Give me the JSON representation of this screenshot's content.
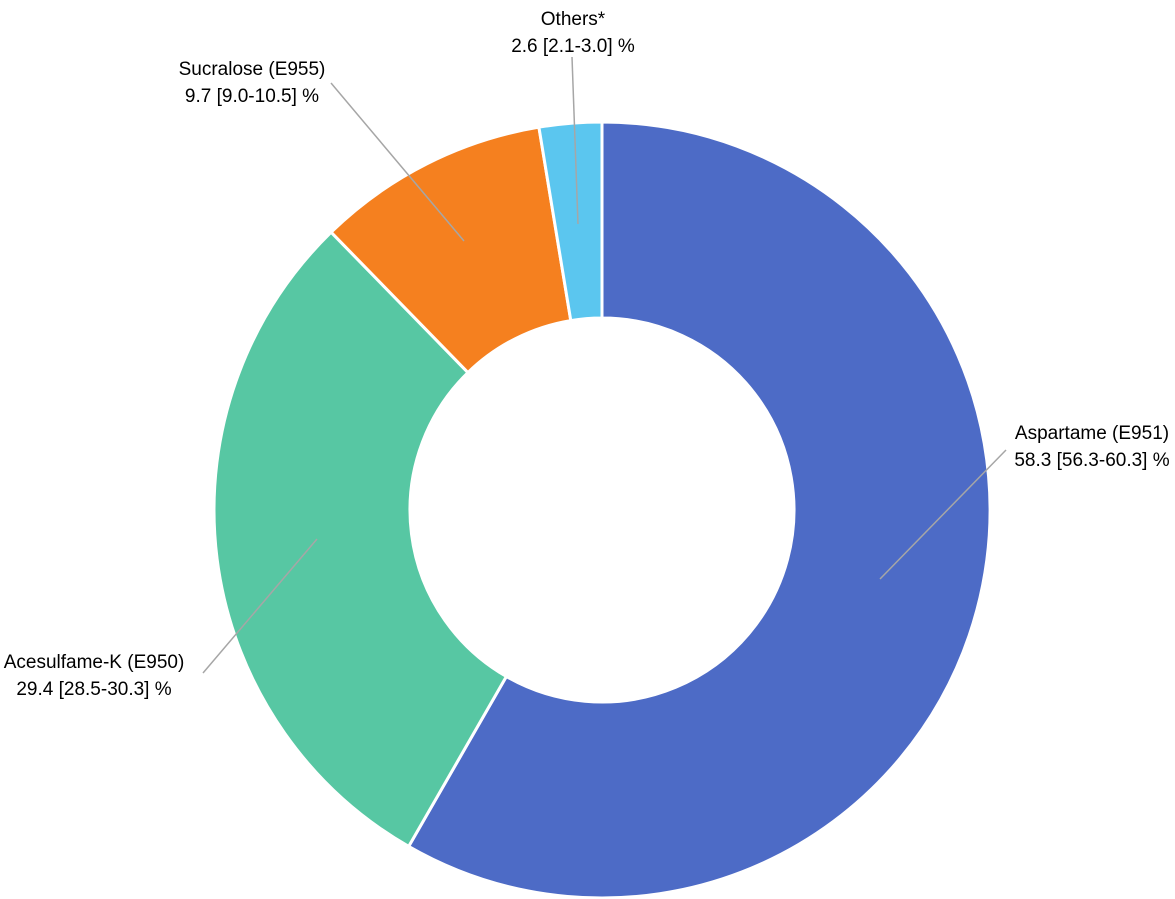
{
  "chart_data": {
    "type": "pie",
    "subtype": "donut",
    "title": "",
    "start_angle_deg": 0,
    "direction": "clockwise",
    "hole_ratio": 0.5,
    "units": "%",
    "total": 100.0,
    "legend_position": "callout-labels",
    "slices": [
      {
        "label": "Aspartame (E951)",
        "value": 58.3,
        "ci_low": 56.3,
        "ci_high": 60.3,
        "value_text": "58.3 [56.3-60.3] %",
        "color": "#4D6BC6"
      },
      {
        "label": "Acesulfame-K (E950)",
        "value": 29.4,
        "ci_low": 28.5,
        "ci_high": 30.3,
        "value_text": "29.4 [28.5-30.3] %",
        "color": "#57C7A3"
      },
      {
        "label": "Sucralose (E955)",
        "value": 9.7,
        "ci_low": 9.0,
        "ci_high": 10.5,
        "value_text": "9.7 [9.0-10.5] %",
        "color": "#F5801F"
      },
      {
        "label": "Others*",
        "value": 2.6,
        "ci_low": 2.1,
        "ci_high": 3.0,
        "value_text": "2.6 [2.1-3.0] %",
        "color": "#5BC6EF"
      }
    ],
    "leader_line_color": "#A6A6A6",
    "slice_gap_color": "#FFFFFF"
  }
}
